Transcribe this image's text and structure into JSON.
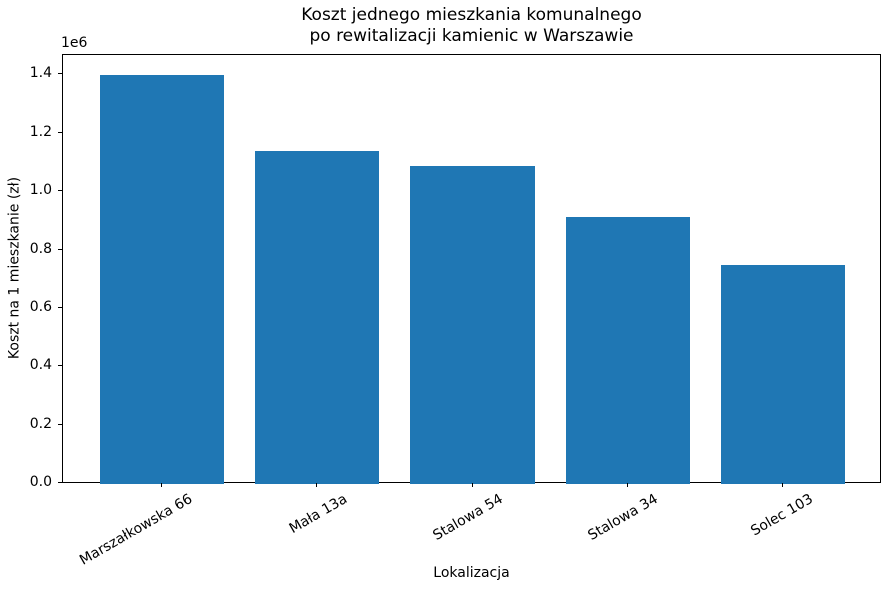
{
  "chart_data": {
    "type": "bar",
    "title": "Koszt jednego mieszkania komunalnego\npo rewitalizacji kamienic w Warszawie",
    "title_lines": [
      "Koszt jednego mieszkania komunalnego",
      "po rewitalizacji kamienic w Warszawie"
    ],
    "categories": [
      "Marszałkowska 66",
      "Mała 13a",
      "Stalowa 54",
      "Stalowa 34",
      "Solec 103"
    ],
    "values": [
      1400000,
      1140000,
      1090000,
      915000,
      750000
    ],
    "xlabel": "Lokalizacja",
    "ylabel": "Koszt na 1 mieszkanie (zł)",
    "ylim": [
      0,
      1470000
    ],
    "yticks": [
      0,
      200000,
      400000,
      600000,
      800000,
      1000000,
      1200000,
      1400000
    ],
    "ytick_labels": [
      "0.0",
      "0.2",
      "0.4",
      "0.6",
      "0.8",
      "1.0",
      "1.2",
      "1.4"
    ],
    "ytick_unit_label": "1e6",
    "x_tick_rotation_deg": 30,
    "bar_color": "#1f77b4",
    "background_color": "#ffffff",
    "grid": false,
    "legend": false
  }
}
